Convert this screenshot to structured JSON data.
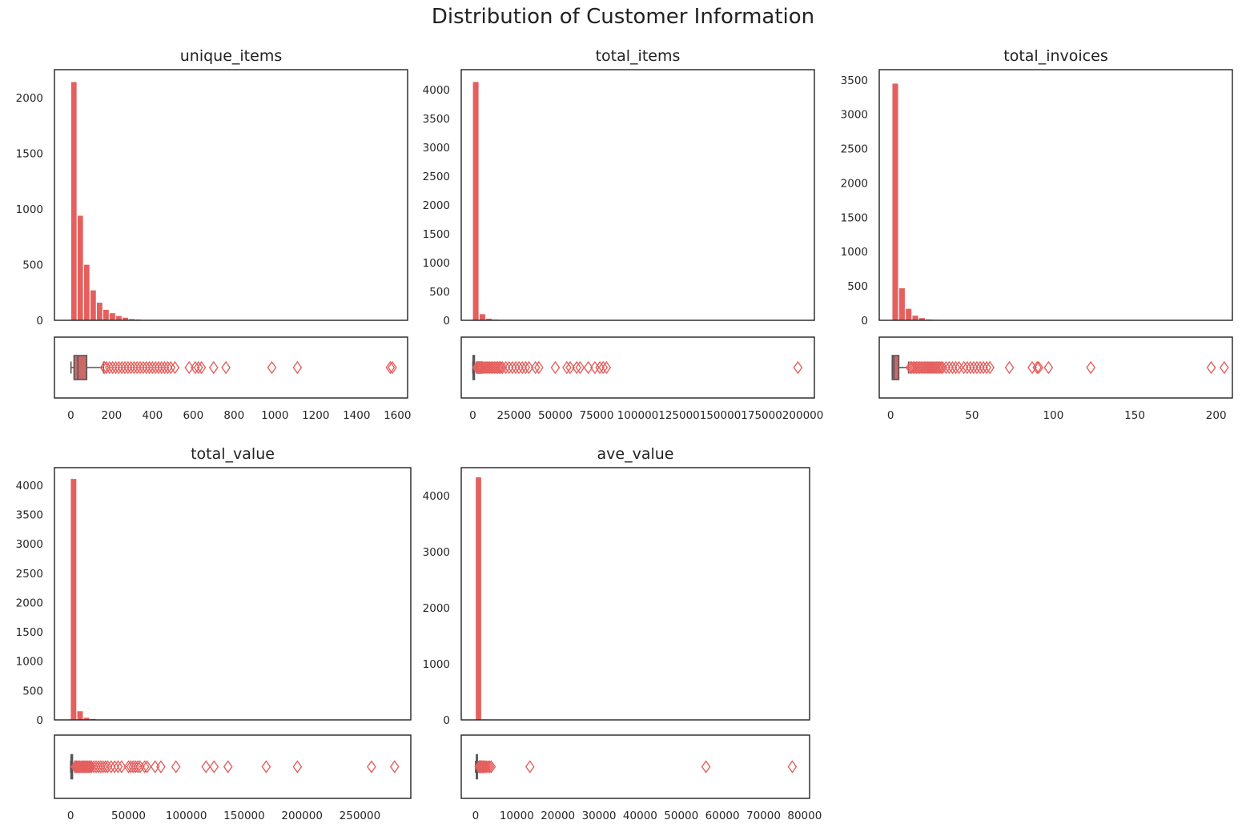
{
  "figure": {
    "title": "Distribution of Customer Information"
  },
  "colors": {
    "bar": "#e4605e",
    "box_fill": "#c96a69",
    "box_line": "#555555",
    "outlier": "#e4605e",
    "axes": "#222222"
  },
  "chart_data": [
    {
      "type": "bar",
      "title": "unique_items",
      "xlabel": "",
      "ylabel": "",
      "xlim": [
        -80,
        1650
      ],
      "ylim": [
        0,
        2250
      ],
      "xticks": [
        0,
        200,
        400,
        600,
        800,
        1000,
        1200,
        1400,
        1600
      ],
      "yticks": [
        0,
        500,
        1000,
        1500,
        2000
      ],
      "hist": {
        "bin_width": 31.5,
        "bin_start": 1,
        "counts": [
          2140,
          940,
          500,
          270,
          160,
          95,
          65,
          40,
          25,
          12,
          8,
          5,
          4,
          3,
          2,
          2,
          1,
          1,
          1,
          1,
          1,
          1,
          1,
          1,
          0,
          0,
          0,
          0,
          0,
          0,
          0,
          1,
          0,
          0,
          1,
          0,
          0,
          0,
          0,
          0,
          0,
          0,
          0,
          0,
          0,
          0,
          0,
          0,
          0,
          2
        ]
      },
      "box": {
        "min": 1,
        "q1": 16,
        "median": 35,
        "q3": 78,
        "whisker_high": 160,
        "outliers": [
          165,
          175,
          190,
          205,
          220,
          235,
          250,
          265,
          280,
          295,
          310,
          325,
          340,
          355,
          370,
          385,
          400,
          415,
          430,
          445,
          460,
          475,
          490,
          510,
          580,
          610,
          625,
          640,
          700,
          760,
          985,
          1110,
          1565,
          1575
        ]
      }
    },
    {
      "type": "bar",
      "title": "total_items",
      "xlabel": "",
      "ylabel": "",
      "xlim": [
        -7000,
        207000
      ],
      "ylim": [
        0,
        4350
      ],
      "xticks": [
        0,
        25000,
        50000,
        75000,
        100000,
        125000,
        150000,
        175000,
        200000
      ],
      "yticks": [
        0,
        500,
        1000,
        1500,
        2000,
        2500,
        3000,
        3500,
        4000
      ],
      "hist": {
        "bin_width": 4000,
        "bin_start": 1,
        "counts": [
          4140,
          110,
          30,
          15,
          8,
          5,
          3,
          2,
          2,
          1,
          1,
          1,
          1,
          1,
          1,
          1,
          1,
          1,
          1,
          1,
          0,
          0,
          0,
          0,
          0,
          0,
          0,
          0,
          0,
          0,
          0,
          0,
          0,
          0,
          0,
          0,
          0,
          0,
          0,
          0,
          0,
          0,
          0,
          0,
          0,
          0,
          0,
          0,
          0,
          1
        ]
      },
      "box": {
        "min": 1,
        "q1": 160,
        "median": 380,
        "q3": 990,
        "whisker_high": 2200,
        "outliers": [
          2500,
          3000,
          3500,
          4000,
          4500,
          5000,
          5500,
          6000,
          7000,
          8000,
          9000,
          10000,
          11000,
          12000,
          13000,
          14000,
          15000,
          16000,
          17000,
          18000,
          20000,
          22000,
          24000,
          26000,
          28000,
          30000,
          32000,
          34000,
          38000,
          40000,
          50000,
          57000,
          59000,
          63000,
          65000,
          70000,
          74000,
          77000,
          79000,
          81000,
          197000
        ]
      }
    },
    {
      "type": "bar",
      "title": "total_invoices",
      "xlabel": "",
      "ylabel": "",
      "xlim": [
        -7,
        210
      ],
      "ylim": [
        0,
        3650
      ],
      "xticks": [
        0,
        50,
        100,
        150,
        200
      ],
      "yticks": [
        0,
        500,
        1000,
        1500,
        2000,
        2500,
        3000,
        3500
      ],
      "hist": {
        "bin_width": 4.1,
        "bin_start": 1,
        "counts": [
          3450,
          470,
          170,
          70,
          35,
          15,
          10,
          6,
          5,
          4,
          3,
          2,
          2,
          2,
          1,
          1,
          1,
          1,
          1,
          1,
          1,
          1,
          1,
          1,
          1,
          0,
          0,
          0,
          0,
          1,
          0,
          0,
          0,
          0,
          0,
          0,
          0,
          0,
          0,
          0,
          0,
          0,
          0,
          0,
          0,
          0,
          0,
          0,
          1,
          1
        ]
      },
      "box": {
        "min": 1,
        "q1": 1,
        "median": 2,
        "q3": 5,
        "whisker_high": 11,
        "outliers": [
          12,
          13,
          14,
          15,
          16,
          17,
          18,
          19,
          20,
          21,
          22,
          23,
          24,
          25,
          26,
          27,
          28,
          29,
          30,
          31,
          32,
          34,
          36,
          38,
          40,
          42,
          45,
          47,
          49,
          51,
          53,
          55,
          57,
          59,
          61,
          73,
          87,
          90,
          91,
          97,
          123,
          197,
          205
        ]
      }
    },
    {
      "type": "bar",
      "title": "total_value",
      "xlabel": "",
      "ylabel": "",
      "xlim": [
        -14000,
        294000
      ],
      "ylim": [
        0,
        4300
      ],
      "xticks": [
        0,
        50000,
        100000,
        150000,
        200000,
        250000
      ],
      "yticks": [
        0,
        500,
        1000,
        1500,
        2000,
        2500,
        3000,
        3500,
        4000
      ],
      "hist": {
        "bin_width": 5600,
        "bin_start": 1,
        "counts": [
          4110,
          150,
          40,
          18,
          10,
          6,
          4,
          3,
          2,
          2,
          1,
          1,
          1,
          1,
          0,
          1,
          0,
          0,
          0,
          1,
          0,
          1,
          0,
          1,
          0,
          0,
          0,
          0,
          0,
          1,
          0,
          0,
          0,
          0,
          1,
          0,
          0,
          0,
          0,
          0,
          0,
          0,
          0,
          0,
          0,
          0,
          1,
          0,
          0,
          1
        ]
      },
      "box": {
        "min": 1,
        "q1": 300,
        "median": 650,
        "q3": 1600,
        "whisker_high": 3600,
        "outliers": [
          4000,
          4500,
          5000,
          6000,
          7000,
          8000,
          9000,
          10000,
          11000,
          12000,
          13000,
          14000,
          15000,
          16000,
          17000,
          18000,
          20000,
          22000,
          24000,
          26000,
          28000,
          30000,
          32000,
          35000,
          38000,
          41000,
          44000,
          50000,
          52000,
          54000,
          56000,
          58000,
          60000,
          64000,
          66000,
          73000,
          78000,
          91000,
          117000,
          124000,
          136000,
          169000,
          196000,
          260000,
          280000
        ]
      }
    },
    {
      "type": "bar",
      "title": "ave_value",
      "xlabel": "",
      "ylabel": "",
      "xlim": [
        -3500,
        81200
      ],
      "ylim": [
        0,
        4500
      ],
      "xticks": [
        0,
        10000,
        20000,
        30000,
        40000,
        50000,
        60000,
        70000,
        80000
      ],
      "yticks": [
        0,
        1000,
        2000,
        3000,
        4000
      ],
      "hist": {
        "bin_width": 1540,
        "bin_start": 1,
        "counts": [
          4330,
          10,
          4,
          2,
          1,
          1,
          0,
          0,
          1,
          0,
          0,
          0,
          0,
          0,
          0,
          0,
          0,
          0,
          0,
          0,
          0,
          0,
          0,
          0,
          0,
          0,
          0,
          0,
          0,
          0,
          0,
          0,
          0,
          0,
          0,
          0,
          1,
          0,
          0,
          0,
          0,
          0,
          0,
          0,
          0,
          0,
          0,
          0,
          0,
          1
        ]
      },
      "box": {
        "min": 1,
        "q1": 180,
        "median": 300,
        "q3": 420,
        "whisker_high": 780,
        "outliers": [
          850,
          950,
          1050,
          1150,
          1300,
          1450,
          1600,
          1800,
          2000,
          2300,
          2600,
          3000,
          3400,
          3800,
          13200,
          56000,
          77000
        ]
      }
    }
  ]
}
